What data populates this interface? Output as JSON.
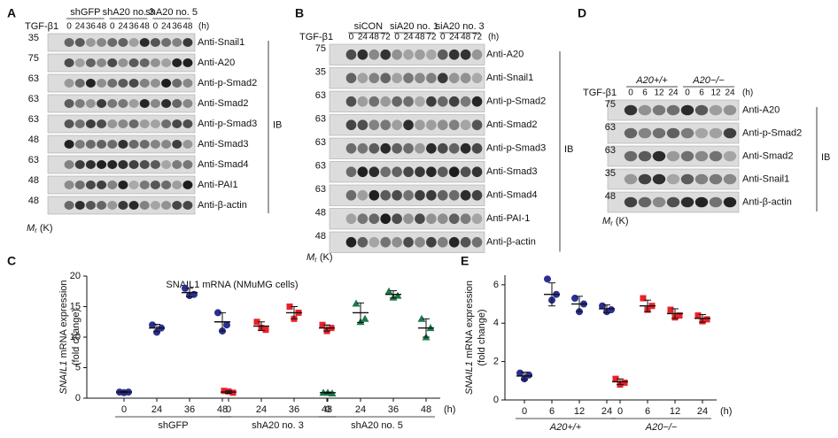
{
  "panels": [
    {
      "letter": "A",
      "treatment": "TGF-β1",
      "unit": "(h)",
      "groups": [
        "shGFP",
        "shA20 no. 3",
        "shA20 no. 5"
      ],
      "times": [
        "0",
        "24",
        "36",
        "48"
      ],
      "rows": [
        {
          "mw": "35",
          "label": "Anti-Snail1"
        },
        {
          "mw": "75",
          "label": "Anti-A20"
        },
        {
          "mw": "63",
          "label": "Anti-p-Smad2"
        },
        {
          "mw": "63",
          "label": "Anti-Smad2"
        },
        {
          "mw": "63",
          "label": "Anti-p-Smad3"
        },
        {
          "mw": "48",
          "label": "Anti-Smad3"
        },
        {
          "mw": "63",
          "label": "Anti-Smad4"
        },
        {
          "mw": "48",
          "label": "Anti-PAI1"
        },
        {
          "mw": "48",
          "label": "Anti-β-actin"
        }
      ],
      "ib": "IB",
      "mr": {
        "symbol": "M",
        "sub": "r",
        "unit": "(K)"
      }
    },
    {
      "letter": "B",
      "treatment": "TGF-β1",
      "unit": "(h)",
      "groups": [
        "siCON",
        "siA20 no. 1",
        "siA20 no. 3"
      ],
      "times": [
        "0",
        "24",
        "48",
        "72"
      ],
      "rows": [
        {
          "mw": "75",
          "label": "Anti-A20"
        },
        {
          "mw": "35",
          "label": "Anti-Snail1"
        },
        {
          "mw": "63",
          "label": "Anti-p-Smad2"
        },
        {
          "mw": "63",
          "label": "Anti-Smad2"
        },
        {
          "mw": "63",
          "label": "Anti-p-Smad3"
        },
        {
          "mw": "63",
          "label": "Anti-Smad3"
        },
        {
          "mw": "63",
          "label": "Anti-Smad4"
        },
        {
          "mw": "48",
          "label": "Anti-PAI-1"
        },
        {
          "mw": "48",
          "label": "Anti-β-actin"
        }
      ],
      "ib": "IB",
      "mr": {
        "symbol": "M",
        "sub": "r",
        "unit": "(K)"
      }
    },
    {
      "letter": "D",
      "treatment": "TGF-β1",
      "unit": "(h)",
      "groups": [
        "A20+/+",
        "A20−/−"
      ],
      "times": [
        "0",
        "6",
        "12",
        "24"
      ],
      "rows": [
        {
          "mw": "75",
          "label": "Anti-A20"
        },
        {
          "mw": "63",
          "label": "Anti-p-Smad2"
        },
        {
          "mw": "63",
          "label": "Anti-Smad2"
        },
        {
          "mw": "35",
          "label": "Anti-Snail1"
        },
        {
          "mw": "48",
          "label": "Anti-β-actin"
        }
      ],
      "ib": "IB",
      "mr": {
        "symbol": "M",
        "sub": "r",
        "unit": "(K)"
      }
    }
  ],
  "chart_data": [
    {
      "type": "dot",
      "letter": "C",
      "title": "SNAIL1 mRNA (NMuMG cells)",
      "ylabel_gene": "SNAIL1",
      "ylabel_rest": " mRNA expression",
      "ylabel_unit": "(fold change)",
      "categories": [
        "0",
        "24",
        "36",
        "48"
      ],
      "x_unit": "(h)",
      "ylim": [
        0,
        20
      ],
      "yticks": [
        0,
        5,
        10,
        15,
        20
      ],
      "series": [
        {
          "name": "shGFP",
          "color": "#2b2f8f",
          "marker": "circle",
          "values": [
            [
              1,
              1,
              0.9
            ],
            [
              12,
              11.5,
              10.8
            ],
            [
              18,
              17,
              16.8
            ],
            [
              14,
              12,
              11
            ]
          ],
          "means": [
            1,
            11.5,
            17.3,
            12.5
          ],
          "errors": [
            0.1,
            0.6,
            0.7,
            1.5
          ]
        },
        {
          "name": "shA20 no. 3",
          "color": "#e8212a",
          "marker": "square",
          "values": [
            [
              1.2,
              0.9,
              1.1
            ],
            [
              12.5,
              11.2,
              11.5
            ],
            [
              15,
              14,
              13
            ],
            [
              12,
              11.5,
              11
            ]
          ],
          "means": [
            1,
            11.8,
            14,
            11.5
          ],
          "errors": [
            0.2,
            0.7,
            1,
            0.5
          ]
        },
        {
          "name": "shA20 no. 5",
          "color": "#1a7a4a",
          "marker": "triangle",
          "values": [
            [
              0.9,
              0.8,
              0.9
            ],
            [
              15.5,
              13,
              12.5
            ],
            [
              17.5,
              16.8,
              16.5
            ],
            [
              13,
              11.5,
              10
            ]
          ],
          "means": [
            0.9,
            14,
            17,
            11.5
          ],
          "errors": [
            0.1,
            1.6,
            0.6,
            1.5
          ]
        }
      ]
    },
    {
      "type": "dot",
      "letter": "E",
      "ylabel_gene": "SNAIL1",
      "ylabel_rest": " mRNA expression",
      "ylabel_unit": "(fold change)",
      "categories": [
        "0",
        "6",
        "12",
        "24"
      ],
      "x_unit": "(h)",
      "ylim": [
        0,
        6.5
      ],
      "yticks": [
        0,
        2,
        4,
        6
      ],
      "series": [
        {
          "name": "A20+/+",
          "color": "#2b2f8f",
          "marker": "circle",
          "values": [
            [
              1.4,
              1.3,
              1.1
            ],
            [
              6.3,
              5.5,
              5.2
            ],
            [
              5.3,
              5,
              4.6
            ],
            [
              4.9,
              4.7,
              4.6
            ]
          ],
          "means": [
            1.25,
            5.5,
            5,
            4.75
          ],
          "errors": [
            0.2,
            0.6,
            0.4,
            0.2
          ]
        },
        {
          "name": "A20−/−",
          "color": "#e8212a",
          "marker": "square",
          "values": [
            [
              1.1,
              0.9,
              0.8
            ],
            [
              5.3,
              4.9,
              4.7
            ],
            [
              4.7,
              4.4,
              4.3
            ],
            [
              4.4,
              4.2,
              4.1
            ]
          ],
          "means": [
            0.95,
            4.9,
            4.5,
            4.25
          ],
          "errors": [
            0.15,
            0.3,
            0.25,
            0.2
          ]
        }
      ]
    }
  ]
}
